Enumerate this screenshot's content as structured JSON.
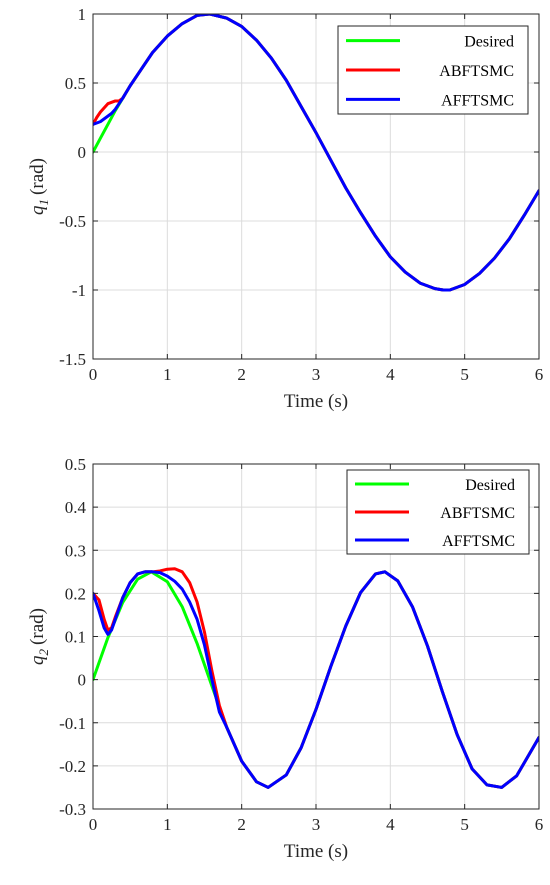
{
  "chart_data": [
    {
      "type": "line",
      "xlabel": "Time (s)",
      "ylabel_symbol": "q",
      "ylabel_sub": "1",
      "ylabel_unit": "(rad)",
      "xlim": [
        0,
        6
      ],
      "ylim": [
        -1.5,
        1
      ],
      "xticks": [
        0,
        1,
        2,
        3,
        4,
        5,
        6
      ],
      "yticks": [
        -1.5,
        -1,
        -0.5,
        0,
        0.5,
        1
      ],
      "xtick_labels": [
        "0",
        "1",
        "2",
        "3",
        "4",
        "5",
        "6"
      ],
      "ytick_labels": [
        "-1.5",
        "-1",
        "-0.5",
        "0",
        "0.5",
        "1"
      ],
      "grid": true,
      "legend_position": "top-right",
      "series": [
        {
          "name": "Desired",
          "color": "#00ff00",
          "x": [
            0,
            0.1,
            0.2,
            0.3,
            0.4,
            0.5,
            0.6,
            0.8,
            1.0,
            1.2,
            1.4,
            1.571,
            1.8,
            2.0,
            2.2,
            2.4,
            2.6,
            2.8,
            3.0,
            3.2,
            3.4,
            3.6,
            3.8,
            4.0,
            4.2,
            4.4,
            4.6,
            4.712,
            4.8,
            5.0,
            5.2,
            5.4,
            5.6,
            5.8,
            6.0
          ],
          "y": [
            0,
            0.1,
            0.2,
            0.3,
            0.39,
            0.48,
            0.56,
            0.72,
            0.84,
            0.93,
            0.99,
            1.0,
            0.97,
            0.91,
            0.81,
            0.68,
            0.52,
            0.33,
            0.14,
            -0.06,
            -0.26,
            -0.44,
            -0.61,
            -0.76,
            -0.87,
            -0.95,
            -0.99,
            -1.0,
            -1.0,
            -0.96,
            -0.88,
            -0.77,
            -0.63,
            -0.46,
            -0.28
          ]
        },
        {
          "name": "ABFTSMC",
          "color": "#ff0000",
          "x": [
            0,
            0.05,
            0.1,
            0.15,
            0.2,
            0.25,
            0.3,
            0.35,
            0.4,
            0.5,
            0.6,
            0.8,
            1.0,
            1.2,
            1.4,
            1.571,
            1.8,
            2.0,
            2.2,
            2.4,
            2.6,
            2.8,
            3.0,
            3.2,
            3.4,
            3.6,
            3.8,
            4.0,
            4.2,
            4.4,
            4.6,
            4.712,
            4.8,
            5.0,
            5.2,
            5.4,
            5.6,
            5.8,
            6.0
          ],
          "y": [
            0.2,
            0.25,
            0.29,
            0.32,
            0.35,
            0.36,
            0.37,
            0.37,
            0.39,
            0.48,
            0.56,
            0.72,
            0.84,
            0.93,
            0.99,
            1.0,
            0.97,
            0.91,
            0.81,
            0.68,
            0.52,
            0.33,
            0.14,
            -0.06,
            -0.26,
            -0.44,
            -0.61,
            -0.76,
            -0.87,
            -0.95,
            -0.99,
            -1.0,
            -1.0,
            -0.96,
            -0.88,
            -0.77,
            -0.63,
            -0.46,
            -0.28
          ]
        },
        {
          "name": "AFFTSMC",
          "color": "#0000ff",
          "x": [
            0,
            0.05,
            0.1,
            0.15,
            0.2,
            0.25,
            0.3,
            0.35,
            0.4,
            0.5,
            0.6,
            0.8,
            1.0,
            1.2,
            1.4,
            1.571,
            1.8,
            2.0,
            2.2,
            2.4,
            2.6,
            2.8,
            3.0,
            3.2,
            3.4,
            3.6,
            3.8,
            4.0,
            4.2,
            4.4,
            4.6,
            4.712,
            4.8,
            5.0,
            5.2,
            5.4,
            5.6,
            5.8,
            6.0
          ],
          "y": [
            0.2,
            0.21,
            0.22,
            0.24,
            0.26,
            0.28,
            0.31,
            0.35,
            0.39,
            0.48,
            0.56,
            0.72,
            0.84,
            0.93,
            0.99,
            1.0,
            0.97,
            0.91,
            0.81,
            0.68,
            0.52,
            0.33,
            0.14,
            -0.06,
            -0.26,
            -0.44,
            -0.61,
            -0.76,
            -0.87,
            -0.95,
            -0.99,
            -1.0,
            -1.0,
            -0.96,
            -0.88,
            -0.77,
            -0.63,
            -0.46,
            -0.28
          ]
        }
      ]
    },
    {
      "type": "line",
      "xlabel": "Time (s)",
      "ylabel_symbol": "q",
      "ylabel_sub": "2",
      "ylabel_unit": "(rad)",
      "xlim": [
        0,
        6
      ],
      "ylim": [
        -0.3,
        0.5
      ],
      "xticks": [
        0,
        1,
        2,
        3,
        4,
        5,
        6
      ],
      "yticks": [
        -0.3,
        -0.2,
        -0.1,
        0,
        0.1,
        0.2,
        0.3,
        0.4,
        0.5
      ],
      "xtick_labels": [
        "0",
        "1",
        "2",
        "3",
        "4",
        "5",
        "6"
      ],
      "ytick_labels": [
        "-0.3",
        "-0.2",
        "-0.1",
        "0",
        "0.1",
        "0.2",
        "0.3",
        "0.4",
        "0.5"
      ],
      "grid": true,
      "legend_position": "top-right",
      "series": [
        {
          "name": "Desired",
          "color": "#00ff00",
          "x": [
            0,
            0.2,
            0.4,
            0.6,
            0.785,
            1.0,
            1.2,
            1.4,
            1.6,
            1.8,
            2.0,
            2.2,
            2.356,
            2.6,
            2.8,
            3.0,
            3.2,
            3.4,
            3.6,
            3.8,
            3.927,
            4.1,
            4.3,
            4.5,
            4.7,
            4.9,
            5.1,
            5.3,
            5.498,
            5.7,
            6.0
          ],
          "y": [
            0,
            0.097,
            0.179,
            0.233,
            0.25,
            0.227,
            0.169,
            0.084,
            -0.015,
            -0.111,
            -0.189,
            -0.237,
            -0.25,
            -0.221,
            -0.158,
            -0.069,
            0.031,
            0.124,
            0.202,
            0.245,
            0.25,
            0.229,
            0.168,
            0.078,
            -0.028,
            -0.128,
            -0.207,
            -0.244,
            -0.25,
            -0.223,
            -0.134
          ]
        },
        {
          "name": "ABFTSMC",
          "color": "#ff0000",
          "x": [
            0,
            0.08,
            0.15,
            0.2,
            0.25,
            0.3,
            0.4,
            0.5,
            0.6,
            0.7,
            0.8,
            0.9,
            1.0,
            1.1,
            1.2,
            1.3,
            1.4,
            1.5,
            1.6,
            1.7,
            1.8,
            2.0,
            2.2,
            2.356,
            2.6,
            2.8,
            3.0,
            3.2,
            3.4,
            3.6,
            3.8,
            3.927,
            4.1,
            4.3,
            4.5,
            4.7,
            4.9,
            5.1,
            5.3,
            5.498,
            5.7,
            6.0
          ],
          "y": [
            0.2,
            0.185,
            0.14,
            0.115,
            0.12,
            0.145,
            0.19,
            0.225,
            0.245,
            0.25,
            0.25,
            0.252,
            0.256,
            0.257,
            0.25,
            0.225,
            0.18,
            0.11,
            0.02,
            -0.06,
            -0.111,
            -0.189,
            -0.237,
            -0.25,
            -0.221,
            -0.158,
            -0.069,
            0.031,
            0.124,
            0.202,
            0.245,
            0.25,
            0.229,
            0.168,
            0.078,
            -0.028,
            -0.128,
            -0.207,
            -0.244,
            -0.25,
            -0.223,
            -0.134
          ]
        },
        {
          "name": "AFFTSMC",
          "color": "#0000ff",
          "x": [
            0,
            0.08,
            0.15,
            0.2,
            0.25,
            0.3,
            0.4,
            0.5,
            0.6,
            0.7,
            0.8,
            0.9,
            1.0,
            1.1,
            1.2,
            1.3,
            1.4,
            1.5,
            1.6,
            1.7,
            1.8,
            2.0,
            2.2,
            2.356,
            2.6,
            2.8,
            3.0,
            3.2,
            3.4,
            3.6,
            3.8,
            3.927,
            4.1,
            4.3,
            4.5,
            4.7,
            4.9,
            5.1,
            5.3,
            5.498,
            5.7,
            6.0
          ],
          "y": [
            0.2,
            0.16,
            0.12,
            0.105,
            0.115,
            0.14,
            0.19,
            0.225,
            0.245,
            0.25,
            0.25,
            0.248,
            0.24,
            0.228,
            0.21,
            0.18,
            0.14,
            0.08,
            0.0,
            -0.075,
            -0.111,
            -0.189,
            -0.237,
            -0.25,
            -0.221,
            -0.158,
            -0.069,
            0.031,
            0.124,
            0.202,
            0.245,
            0.25,
            0.229,
            0.168,
            0.078,
            -0.028,
            -0.128,
            -0.207,
            -0.244,
            -0.25,
            -0.223,
            -0.134
          ]
        }
      ]
    }
  ]
}
